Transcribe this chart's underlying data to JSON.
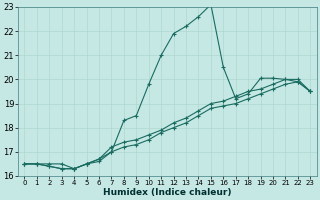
{
  "xlabel": "Humidex (Indice chaleur)",
  "ylabel": "",
  "xlim": [
    -0.5,
    23.5
  ],
  "ylim": [
    16,
    23
  ],
  "xticks": [
    0,
    1,
    2,
    3,
    4,
    5,
    6,
    7,
    8,
    9,
    10,
    11,
    12,
    13,
    14,
    15,
    16,
    17,
    18,
    19,
    20,
    21,
    22,
    23
  ],
  "yticks": [
    16,
    17,
    18,
    19,
    20,
    21,
    22,
    23
  ],
  "bg_color": "#c5e8e4",
  "line_color": "#1a6b60",
  "grid_color": "#b0d8d0",
  "line1_x": [
    0,
    1,
    2,
    3,
    4,
    5,
    6,
    7,
    8,
    9,
    10,
    11,
    12,
    13,
    14,
    15,
    16,
    17,
    18,
    19,
    20,
    21,
    22,
    23
  ],
  "line1_y": [
    16.5,
    16.5,
    16.5,
    16.5,
    16.3,
    16.5,
    16.6,
    17.0,
    18.3,
    18.5,
    19.8,
    21.0,
    21.9,
    22.2,
    22.6,
    23.1,
    20.5,
    19.2,
    19.4,
    20.05,
    20.05,
    20.0,
    19.9,
    19.5
  ],
  "line2_x": [
    0,
    1,
    2,
    3,
    4,
    5,
    6,
    7,
    8,
    9,
    10,
    11,
    12,
    13,
    14,
    15,
    16,
    17,
    18,
    19,
    20,
    21,
    22,
    23
  ],
  "line2_y": [
    16.5,
    16.5,
    16.4,
    16.3,
    16.3,
    16.5,
    16.7,
    17.2,
    17.4,
    17.5,
    17.7,
    17.9,
    18.2,
    18.4,
    18.7,
    19.0,
    19.1,
    19.3,
    19.5,
    19.6,
    19.8,
    20.0,
    20.0,
    19.5
  ],
  "line3_x": [
    0,
    1,
    2,
    3,
    4,
    5,
    6,
    7,
    8,
    9,
    10,
    11,
    12,
    13,
    14,
    15,
    16,
    17,
    18,
    19,
    20,
    21,
    22,
    23
  ],
  "line3_y": [
    16.5,
    16.5,
    16.4,
    16.3,
    16.3,
    16.5,
    16.7,
    17.0,
    17.2,
    17.3,
    17.5,
    17.8,
    18.0,
    18.2,
    18.5,
    18.8,
    18.9,
    19.0,
    19.2,
    19.4,
    19.6,
    19.8,
    19.9,
    19.5
  ]
}
